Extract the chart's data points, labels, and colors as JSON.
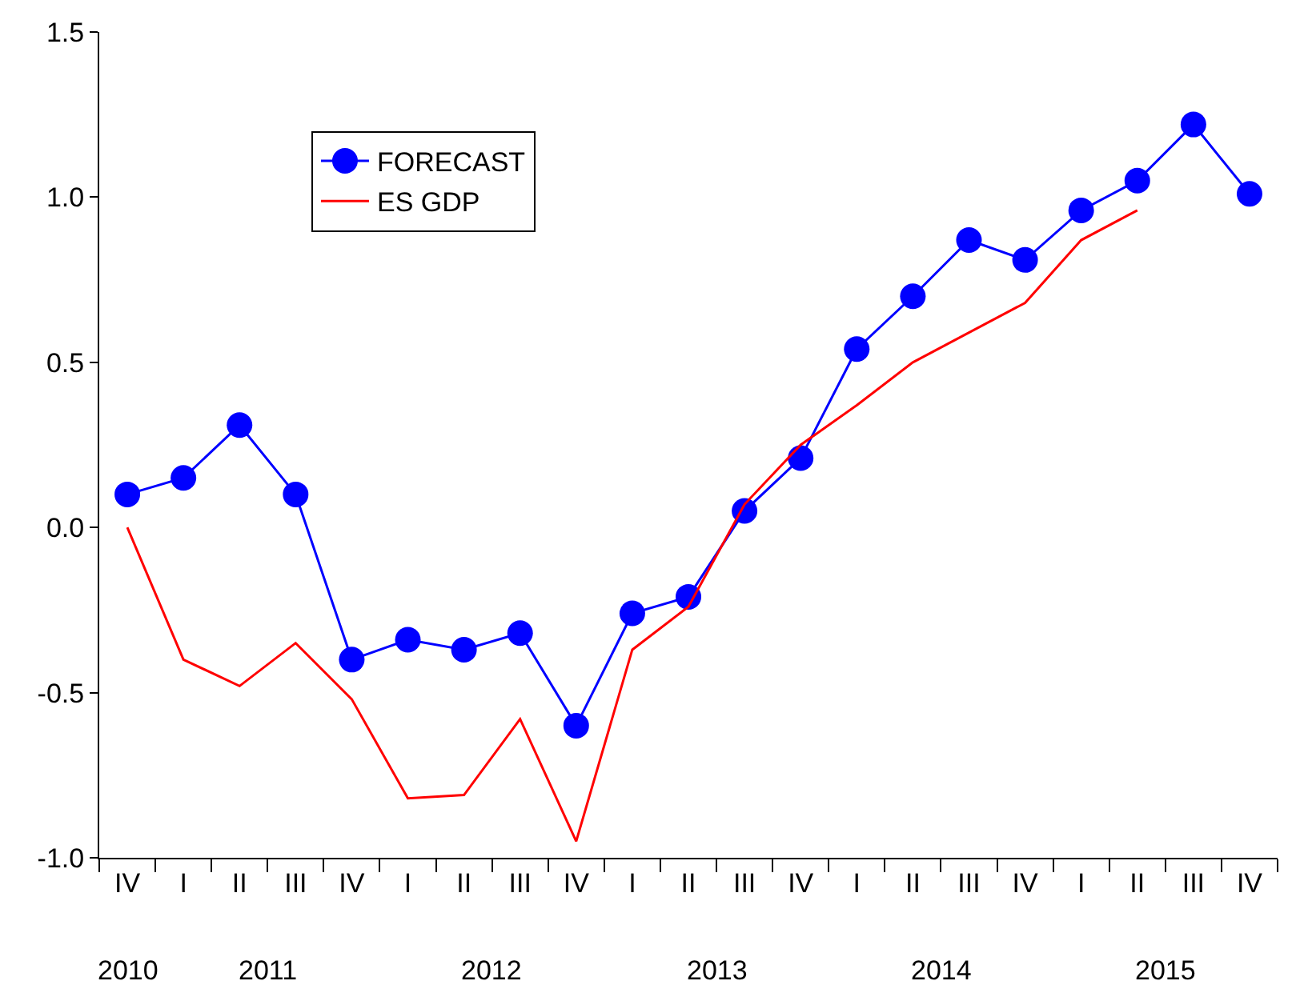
{
  "chart_data": {
    "type": "line",
    "categories": [
      "IV",
      "I",
      "II",
      "III",
      "IV",
      "I",
      "II",
      "III",
      "IV",
      "I",
      "II",
      "III",
      "IV",
      "I",
      "II",
      "III",
      "IV",
      "I",
      "II",
      "III",
      "IV"
    ],
    "annotations": [
      "2010",
      "2011",
      "2012",
      "2013",
      "2014",
      "2015"
    ],
    "series": [
      {
        "name": "FORECAST",
        "color": "#0000ff",
        "marker": "circle",
        "values": [
          0.1,
          0.15,
          0.31,
          0.1,
          -0.4,
          -0.34,
          -0.37,
          -0.32,
          -0.6,
          -0.26,
          -0.21,
          0.05,
          0.21,
          0.54,
          0.7,
          0.87,
          0.81,
          0.96,
          1.05,
          1.22,
          1.01
        ]
      },
      {
        "name": "ES GDP",
        "color": "#ff0000",
        "marker": "none",
        "values": [
          0.0,
          -0.4,
          -0.48,
          -0.35,
          -0.52,
          -0.82,
          -0.81,
          -0.58,
          -0.95,
          -0.37,
          -0.24,
          0.07,
          0.25,
          0.37,
          0.5,
          0.59,
          0.68,
          0.87,
          0.96,
          null,
          null
        ]
      }
    ],
    "ylim": [
      -1.0,
      1.5
    ],
    "yticks": [
      {
        "value": -1.0,
        "label": "-1.0"
      },
      {
        "value": -0.5,
        "label": "-0.5"
      },
      {
        "value": 0.0,
        "label": "0.0"
      },
      {
        "value": 0.5,
        "label": "0.5"
      },
      {
        "value": 1.0,
        "label": "1.0"
      },
      {
        "value": 1.5,
        "label": "1.5"
      }
    ],
    "legend": "top left",
    "line_style": "solid"
  }
}
